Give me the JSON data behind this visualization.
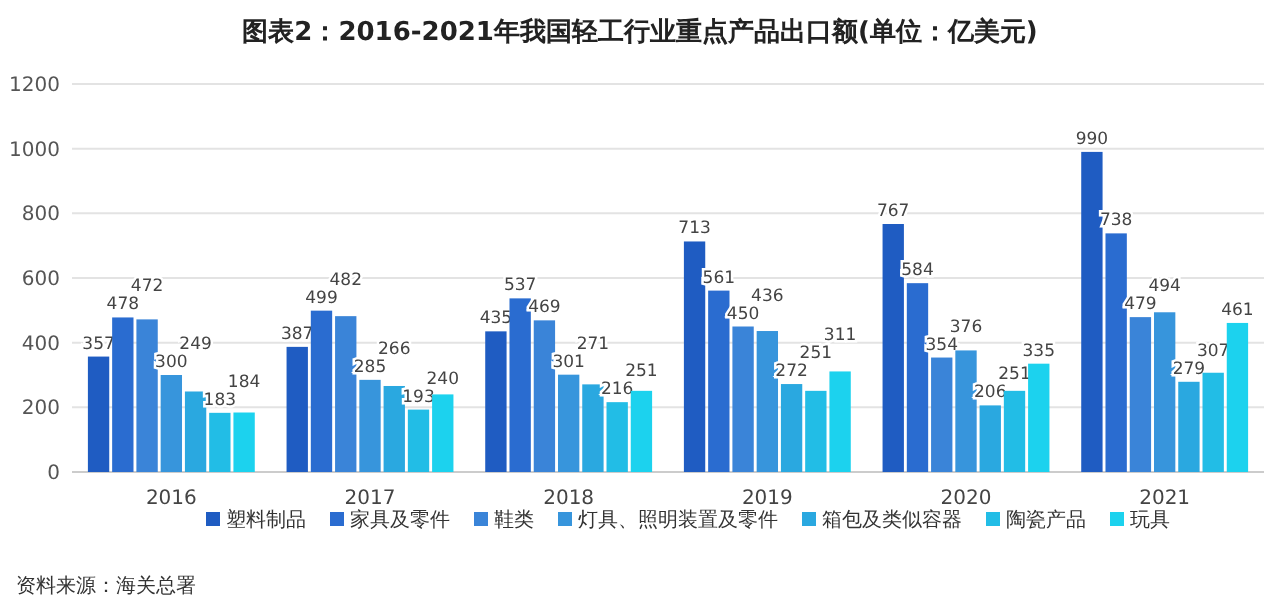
{
  "chart_data": {
    "type": "bar",
    "title": "图表2：2016-2021年我国轻工行业重点产品出口额(单位：亿美元)",
    "categories": [
      "2016",
      "2017",
      "2018",
      "2019",
      "2020",
      "2021"
    ],
    "series": [
      {
        "name": "塑料制品",
        "color": "#1f5cc2",
        "values": [
          357,
          387,
          435,
          713,
          767,
          990
        ]
      },
      {
        "name": "家具及零件",
        "color": "#2a6cd0",
        "values": [
          478,
          499,
          537,
          561,
          584,
          738
        ]
      },
      {
        "name": "鞋类",
        "color": "#3a84d8",
        "values": [
          472,
          482,
          469,
          450,
          354,
          479
        ]
      },
      {
        "name": "灯具、照明装置及零件",
        "color": "#3795dc",
        "values": [
          300,
          285,
          301,
          436,
          376,
          494
        ]
      },
      {
        "name": "箱包及类似容器",
        "color": "#2aa8e0",
        "values": [
          249,
          266,
          271,
          272,
          206,
          279
        ]
      },
      {
        "name": "陶瓷产品",
        "color": "#22bde6",
        "values": [
          183,
          193,
          216,
          251,
          251,
          307
        ]
      },
      {
        "name": "玩具",
        "color": "#1cd2ee",
        "values": [
          184,
          240,
          251,
          311,
          335,
          461
        ]
      }
    ],
    "ylim": [
      0,
      1200
    ],
    "yticks": [
      0,
      200,
      400,
      600,
      800,
      1000,
      1200
    ],
    "grid": "y",
    "legend": "bottom",
    "data_labels": true,
    "annotations": [
      "资料来源：海关总署"
    ]
  }
}
